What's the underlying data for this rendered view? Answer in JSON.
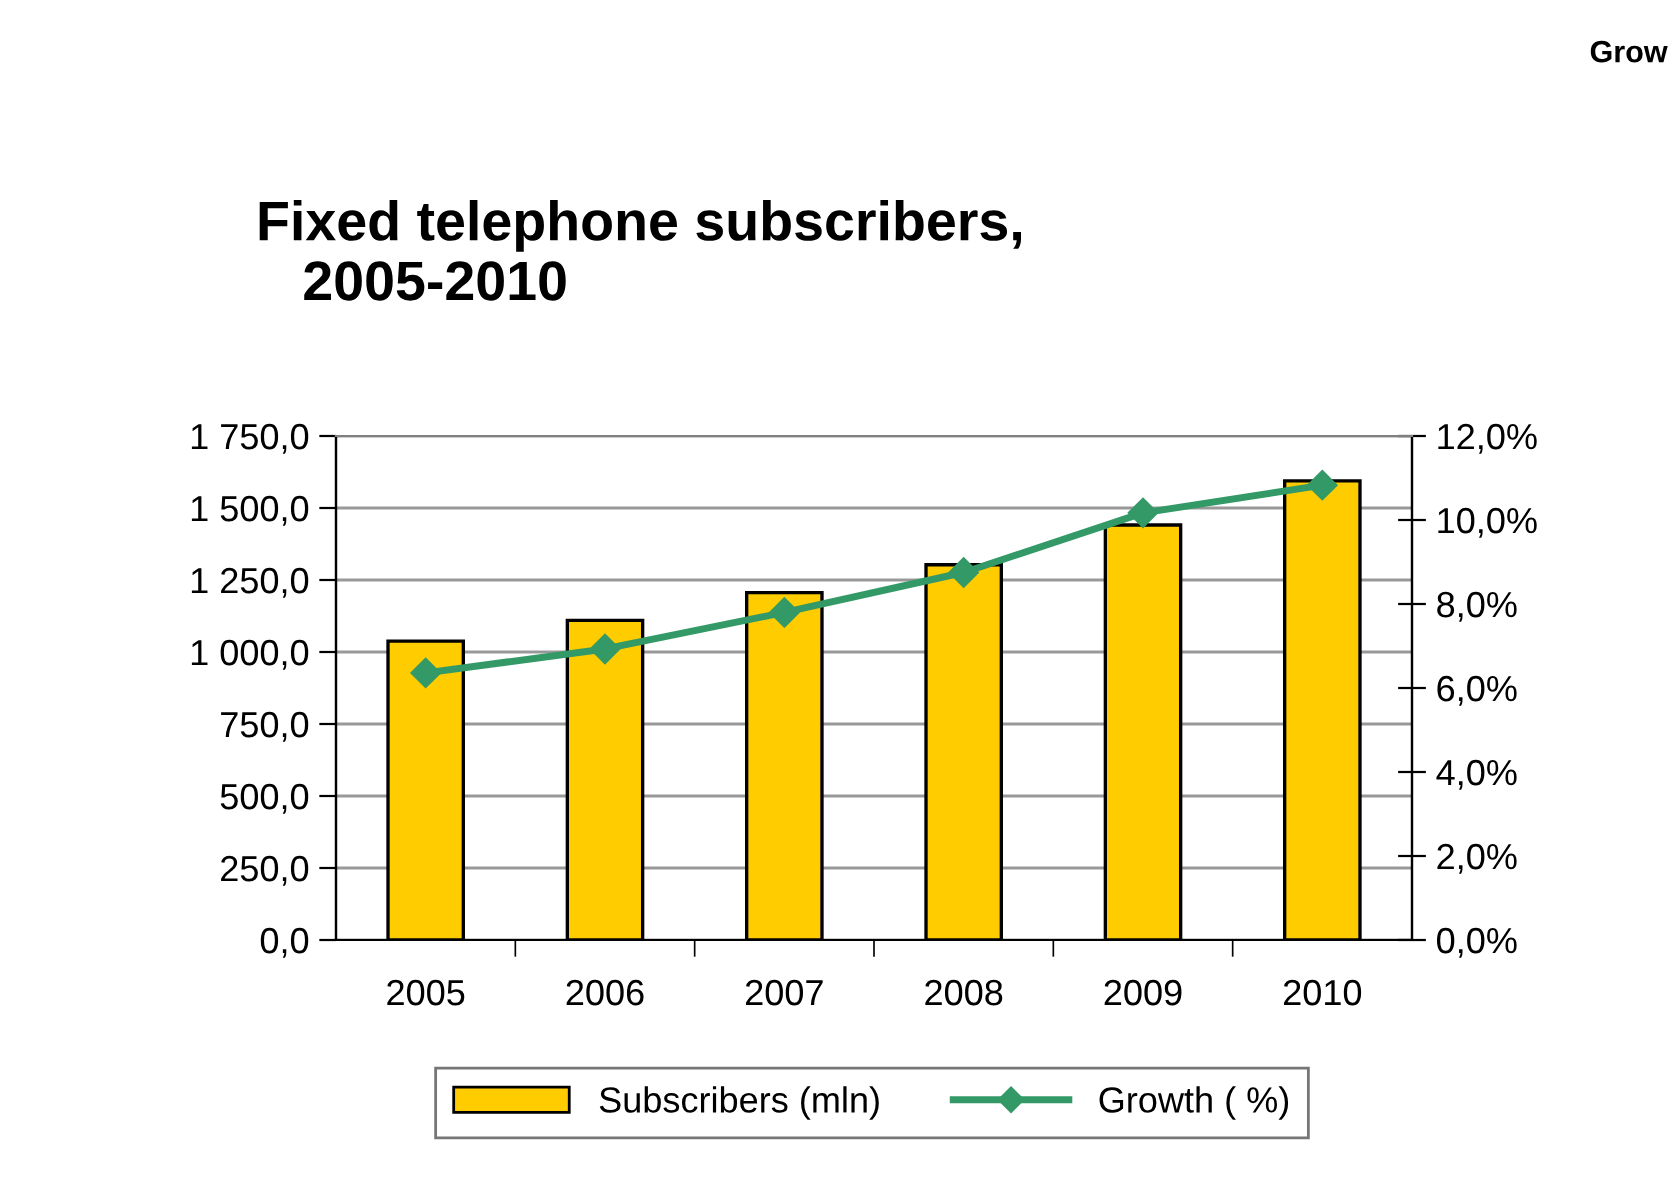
{
  "chart_data": {
    "type": "bar",
    "title": "Fixed telephone subscribers,\n   2005-2010",
    "categories": [
      "2005",
      "2006",
      "2007",
      "2008",
      "2009",
      "2010"
    ],
    "series": [
      {
        "name": "Subscribers (mln)",
        "color": "#ffcc00",
        "values": [
          1038,
          1110,
          1206,
          1303,
          1441,
          1594
        ]
      },
      {
        "name": "Growth ( %)",
        "type": "line",
        "axis": "y2",
        "color": "#339966",
        "marker": "diamond",
        "values": [
          6.36,
          6.93,
          7.8,
          8.75,
          10.17,
          10.83
        ]
      }
    ],
    "ylim": [
      0,
      1750
    ],
    "yticks": [
      {
        "value": 0,
        "label": "0,0"
      },
      {
        "value": 250,
        "label": "250,0"
      },
      {
        "value": 500,
        "label": "500,0"
      },
      {
        "value": 750,
        "label": "750,0"
      },
      {
        "value": 1000,
        "label": "1 000,0"
      },
      {
        "value": 1250,
        "label": "1 250,0"
      },
      {
        "value": 1500,
        "label": "1 500,0"
      },
      {
        "value": 1750,
        "label": "1 750,0"
      }
    ],
    "y2lim": [
      0,
      12
    ],
    "y2ticks": [
      {
        "value": 0,
        "label": "0,0%"
      },
      {
        "value": 2,
        "label": "2,0%"
      },
      {
        "value": 4,
        "label": "4,0%"
      },
      {
        "value": 6,
        "label": "6,0%"
      },
      {
        "value": 8,
        "label": "8,0%"
      },
      {
        "value": 10,
        "label": "10,0%"
      },
      {
        "value": 12,
        "label": "12,0%"
      }
    ],
    "grid": "y",
    "legend": "bottom",
    "annotations": [
      "Grow"
    ]
  }
}
